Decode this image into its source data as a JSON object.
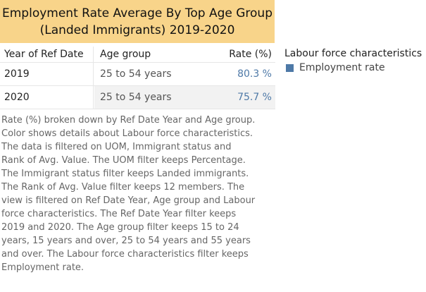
{
  "title": {
    "line1": "Employment Rate Average By Top Age Group",
    "line2": "(Landed Immigrants) 2019-2020"
  },
  "table": {
    "headers": [
      "Year of Ref Date",
      "Age group",
      "Rate (%)"
    ],
    "rows": [
      {
        "year": "2019",
        "age_group": "25 to 54 years",
        "rate": "80.3 %"
      },
      {
        "year": "2020",
        "age_group": "25 to 54 years",
        "rate": "75.7 %"
      }
    ]
  },
  "legend": {
    "title": "Labour force characteristics",
    "items": [
      {
        "label": "Employment rate",
        "color": "#4e79a7"
      }
    ]
  },
  "caption": "Rate (%) broken down by Ref Date Year and Age group.\nColor shows details about Labour force characteristics.\nThe data is filtered on UOM, Immigrant status and\nRank of Avg. Value. The UOM filter keeps Percentage.\nThe Immigrant status filter keeps Landed immigrants.\nThe Rank of Avg. Value filter keeps 12 members. The\nview is filtered on Ref Date Year, Age group and Labour\nforce characteristics. The Ref Date Year filter keeps\n2019 and 2020. The Age group filter keeps 15 to 24\nyears, 15 years and over, 25 to 54 years and 55 years\nand over. The Labour force characteristics filter keeps\nEmployment rate.",
  "chart_data": {
    "type": "table",
    "title": "Employment Rate Average By Top Age Group (Landed Immigrants) 2019-2020",
    "columns": [
      "Year of Ref Date",
      "Age group",
      "Rate (%)"
    ],
    "categories": [
      "2019",
      "2020"
    ],
    "series": [
      {
        "name": "Employment rate",
        "age_group": "25 to 54 years",
        "values": [
          80.3,
          75.7
        ]
      }
    ]
  }
}
